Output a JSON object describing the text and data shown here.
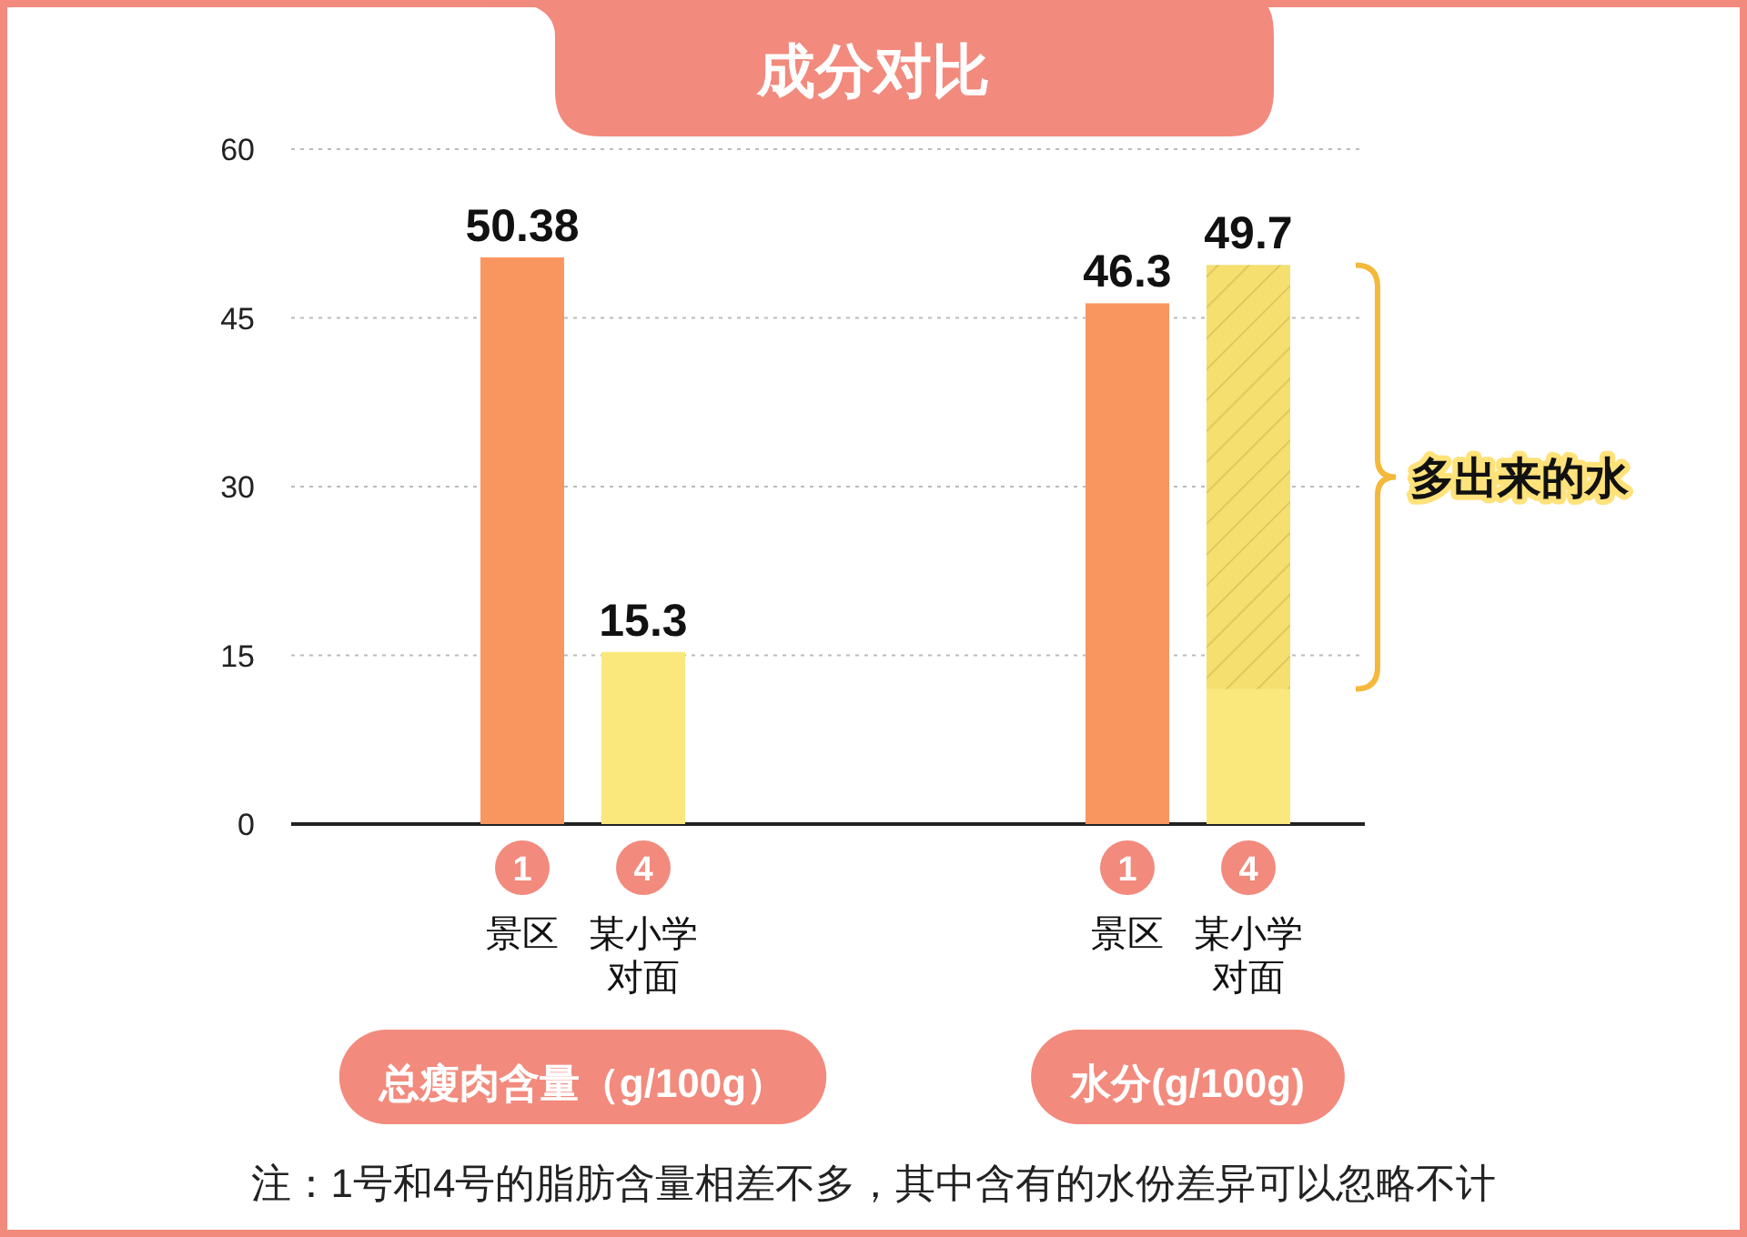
{
  "chart_data": {
    "type": "bar",
    "title": "成分对比",
    "categories": [
      "1 景区",
      "4 某小学对面",
      null,
      null,
      null,
      "1 景区",
      "4 某小学对面"
    ],
    "values": [
      50.38,
      15.3,
      null,
      null,
      null,
      46.3,
      49.7
    ],
    "colors": [
      "#f99660",
      "#fbe87c",
      null,
      null,
      null,
      "#f99660",
      "#fbe87c"
    ],
    "data_labels": true,
    "ylim": [
      0,
      60
    ],
    "yticks": [
      0,
      15,
      30,
      45,
      60
    ],
    "grid": "y",
    "bands": [
      {
        "axis": "y",
        "from": 12,
        "to": 49.7,
        "label": "多出来的水",
        "color": "#f4b83c"
      }
    ],
    "annotations": [
      "总瘦肉含量（g/100g）",
      "水分(g/100g)",
      "注：1号和4号的脂肪含量相差不多，其中含有的水份差异可以忽略不计"
    ]
  }
}
